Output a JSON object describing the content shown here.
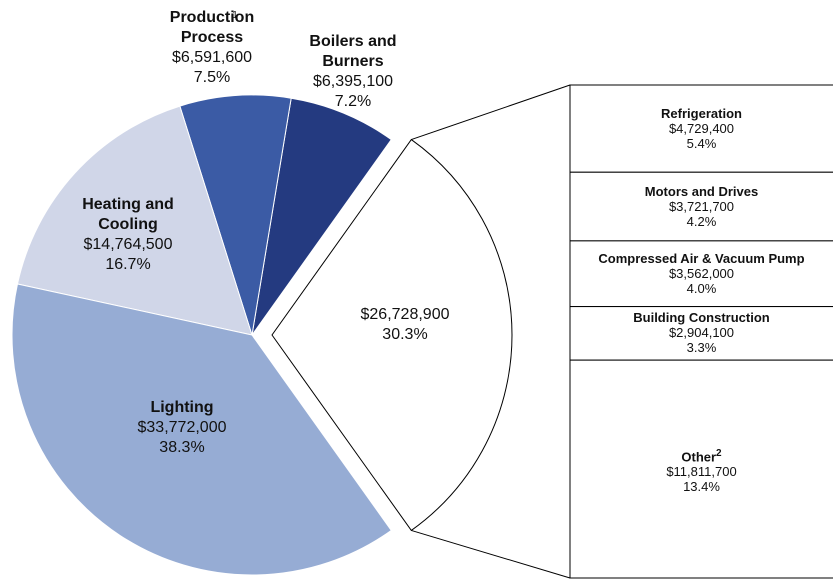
{
  "chart_data": {
    "type": "pie",
    "categories": [
      "Boilers and\nBurners",
      "Production\nProcess",
      "Heating and\nCooling",
      "Lighting",
      null
    ],
    "notes": [
      null,
      "1",
      null,
      null,
      null
    ],
    "values": [
      6395100,
      6591600,
      14764500,
      33772000,
      26728900
    ],
    "value_labels": [
      "$6,395,100",
      "$6,591,600",
      "$14,764,500",
      "$33,772,000",
      "$26,728,900"
    ],
    "percent_labels": [
      "7.2%",
      "7.5%",
      "16.7%",
      "38.3%",
      "30.3%"
    ],
    "colors": [
      "#243a80",
      "#3b5ba5",
      "#d0d6e8",
      "#96acd4",
      "#ffffff"
    ],
    "breakout_index": 4,
    "breakout": {
      "type": "bar",
      "categories": [
        "Refrigeration",
        "Motors and Drives",
        "Compressed Air & Vacuum Pump",
        "Building Construction",
        "Other"
      ],
      "notes": [
        null,
        null,
        null,
        null,
        "2"
      ],
      "values": [
        4729400,
        3721700,
        3562000,
        2904100,
        11811700
      ],
      "value_labels": [
        "$4,729,400",
        "$3,721,700",
        "$3,562,000",
        "$2,904,100",
        "$11,811,700"
      ],
      "percent_labels": [
        "5.4%",
        "4.2%",
        "4.0%",
        "3.3%",
        "13.4%"
      ],
      "color": "#ffffff"
    }
  }
}
